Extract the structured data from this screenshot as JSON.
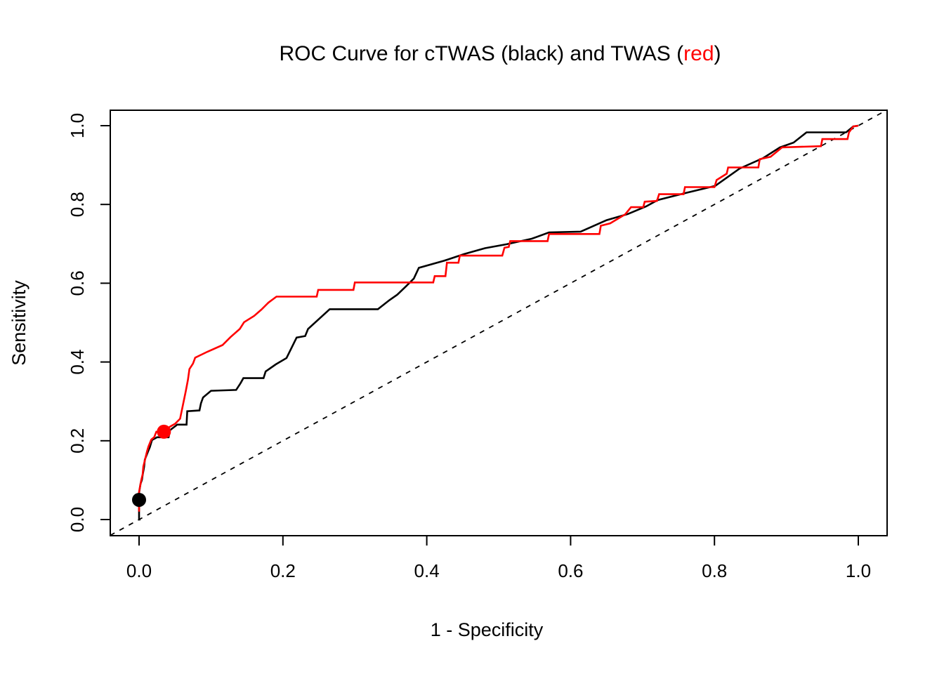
{
  "chart_data": {
    "type": "line",
    "subtype": "roc-step-curves",
    "title": {
      "full": "ROC Curve for cTWAS (black) and TWAS (red)",
      "parts": [
        {
          "text": "ROC Curve for cTWAS (black) and TWAS (",
          "color": "#000000"
        },
        {
          "text": "red",
          "color": "#ff0000"
        },
        {
          "text": ")",
          "color": "#000000"
        }
      ]
    },
    "xlabel": "1 - Specificity",
    "ylabel": "Sensitivity",
    "xlim": [
      -0.04,
      1.04
    ],
    "ylim": [
      -0.04,
      1.04
    ],
    "grid": false,
    "legend_position": "none",
    "x_ticks": {
      "values": [
        0.0,
        0.2,
        0.4,
        0.6,
        0.8,
        1.0
      ],
      "labels": [
        "0.0",
        "0.2",
        "0.4",
        "0.6",
        "0.8",
        "1.0"
      ]
    },
    "y_ticks": {
      "values": [
        0.0,
        0.2,
        0.4,
        0.6,
        0.8,
        1.0
      ],
      "labels": [
        "0.0",
        "0.2",
        "0.4",
        "0.6",
        "0.8",
        "1.0"
      ]
    },
    "reference_line": {
      "kind": "diagonal y = x chance line",
      "style": "dotted",
      "color": "#000000",
      "width": 1.8
    },
    "series": [
      {
        "name": "cTWAS",
        "color": "#000000",
        "line_width": 2.6,
        "marker_point": [
          0.0,
          0.05
        ],
        "points": [
          [
            0.002,
            0
          ],
          [
            0,
            0
          ],
          [
            0,
            0.068
          ],
          [
            0.002,
            0.09
          ],
          [
            0.004,
            0.101
          ],
          [
            0.005,
            0.113
          ],
          [
            0.007,
            0.134
          ],
          [
            0.008,
            0.152
          ],
          [
            0.013,
            0.175
          ],
          [
            0.015,
            0.184
          ],
          [
            0.018,
            0.202
          ],
          [
            0.025,
            0.209
          ],
          [
            0.041,
            0.209
          ],
          [
            0.043,
            0.227
          ],
          [
            0.051,
            0.238
          ],
          [
            0.053,
            0.241
          ],
          [
            0.066,
            0.241
          ],
          [
            0.067,
            0.275
          ],
          [
            0.084,
            0.277
          ],
          [
            0.086,
            0.295
          ],
          [
            0.089,
            0.31
          ],
          [
            0.1,
            0.327
          ],
          [
            0.135,
            0.329
          ],
          [
            0.141,
            0.346
          ],
          [
            0.145,
            0.359
          ],
          [
            0.173,
            0.359
          ],
          [
            0.176,
            0.376
          ],
          [
            0.19,
            0.394
          ],
          [
            0.205,
            0.41
          ],
          [
            0.219,
            0.462
          ],
          [
            0.231,
            0.466
          ],
          [
            0.235,
            0.484
          ],
          [
            0.265,
            0.534
          ],
          [
            0.332,
            0.534
          ],
          [
            0.348,
            0.557
          ],
          [
            0.359,
            0.571
          ],
          [
            0.371,
            0.592
          ],
          [
            0.382,
            0.612
          ],
          [
            0.389,
            0.639
          ],
          [
            0.424,
            0.657
          ],
          [
            0.452,
            0.674
          ],
          [
            0.481,
            0.689
          ],
          [
            0.511,
            0.699
          ],
          [
            0.546,
            0.713
          ],
          [
            0.57,
            0.729
          ],
          [
            0.614,
            0.731
          ],
          [
            0.65,
            0.76
          ],
          [
            0.68,
            0.776
          ],
          [
            0.705,
            0.795
          ],
          [
            0.721,
            0.811
          ],
          [
            0.76,
            0.829
          ],
          [
            0.801,
            0.847
          ],
          [
            0.835,
            0.891
          ],
          [
            0.868,
            0.918
          ],
          [
            0.891,
            0.945
          ],
          [
            0.91,
            0.957
          ],
          [
            0.928,
            0.983
          ],
          [
            0.983,
            0.983
          ],
          [
            0.993,
            0.998
          ],
          [
            1,
            1
          ]
        ]
      },
      {
        "name": "TWAS",
        "color": "#ff0000",
        "line_width": 2.6,
        "marker_point": [
          0.0345,
          0.223
        ],
        "points": [
          [
            0,
            0.02
          ],
          [
            0,
            0.07
          ],
          [
            0.003,
            0.1
          ],
          [
            0.005,
            0.115
          ],
          [
            0.006,
            0.135
          ],
          [
            0.008,
            0.15
          ],
          [
            0.011,
            0.173
          ],
          [
            0.013,
            0.185
          ],
          [
            0.017,
            0.203
          ],
          [
            0.021,
            0.209
          ],
          [
            0.024,
            0.223
          ],
          [
            0.037,
            0.223
          ],
          [
            0.039,
            0.231
          ],
          [
            0.045,
            0.238
          ],
          [
            0.05,
            0.243
          ],
          [
            0.057,
            0.256
          ],
          [
            0.062,
            0.3
          ],
          [
            0.065,
            0.327
          ],
          [
            0.068,
            0.355
          ],
          [
            0.07,
            0.382
          ],
          [
            0.075,
            0.396
          ],
          [
            0.078,
            0.411
          ],
          [
            0.095,
            0.426
          ],
          [
            0.116,
            0.443
          ],
          [
            0.127,
            0.463
          ],
          [
            0.14,
            0.484
          ],
          [
            0.146,
            0.501
          ],
          [
            0.16,
            0.517
          ],
          [
            0.17,
            0.533
          ],
          [
            0.18,
            0.551
          ],
          [
            0.191,
            0.566
          ],
          [
            0.247,
            0.566
          ],
          [
            0.249,
            0.583
          ],
          [
            0.298,
            0.583
          ],
          [
            0.3,
            0.602
          ],
          [
            0.409,
            0.602
          ],
          [
            0.411,
            0.618
          ],
          [
            0.426,
            0.618
          ],
          [
            0.428,
            0.652
          ],
          [
            0.444,
            0.652
          ],
          [
            0.446,
            0.67
          ],
          [
            0.505,
            0.67
          ],
          [
            0.508,
            0.69
          ],
          [
            0.514,
            0.692
          ],
          [
            0.516,
            0.707
          ],
          [
            0.568,
            0.707
          ],
          [
            0.57,
            0.725
          ],
          [
            0.64,
            0.725
          ],
          [
            0.642,
            0.746
          ],
          [
            0.655,
            0.752
          ],
          [
            0.666,
            0.764
          ],
          [
            0.676,
            0.775
          ],
          [
            0.684,
            0.793
          ],
          [
            0.701,
            0.793
          ],
          [
            0.703,
            0.807
          ],
          [
            0.72,
            0.809
          ],
          [
            0.723,
            0.826
          ],
          [
            0.757,
            0.826
          ],
          [
            0.759,
            0.844
          ],
          [
            0.8,
            0.844
          ],
          [
            0.803,
            0.862
          ],
          [
            0.817,
            0.878
          ],
          [
            0.819,
            0.894
          ],
          [
            0.861,
            0.894
          ],
          [
            0.863,
            0.915
          ],
          [
            0.878,
            0.921
          ],
          [
            0.894,
            0.945
          ],
          [
            0.948,
            0.948
          ],
          [
            0.95,
            0.966
          ],
          [
            0.985,
            0.966
          ],
          [
            0.987,
            0.983
          ],
          [
            0.993,
            0.998
          ],
          [
            1,
            1
          ]
        ]
      }
    ]
  }
}
